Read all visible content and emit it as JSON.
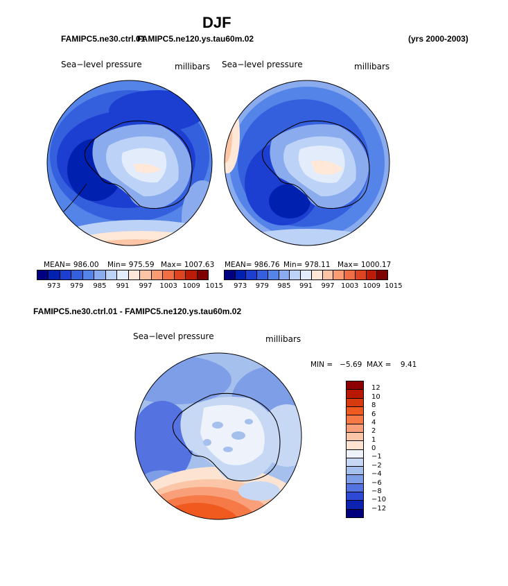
{
  "title": "DJF",
  "header": {
    "left_case_overlapped": "FAMIPC5.ne30.ctrl.01",
    "left_years_overlapped": "FAMIPC5.ne120.ys.tau60m.02",
    "right_years": "(yrs 2000-2003)"
  },
  "panels": {
    "variable": "Sea−level pressure",
    "units": "millibars",
    "left": {
      "mean": "MEAN= 986.00",
      "min": "Min= 975.59",
      "max": "Max= 1007.63"
    },
    "right": {
      "mean": "MEAN= 986.76",
      "min": "Min= 978.11",
      "max": "Max= 1000.17"
    },
    "colorbar_ticks": [
      "973",
      "979",
      "985",
      "991",
      "997",
      "1003",
      "1009",
      "1015"
    ],
    "colorbar_colors": [
      "#000080",
      "#0020b0",
      "#1c3fd2",
      "#3460de",
      "#5584e8",
      "#8aabee",
      "#bcd2f6",
      "#e3ecfb",
      "#ffe8d8",
      "#fcc6a6",
      "#f99c74",
      "#f06e44",
      "#de4420",
      "#bb1c08",
      "#7f0000"
    ]
  },
  "diff": {
    "label": "FAMIPC5.ne30.ctrl.01 - FAMIPC5.ne120.ys.tau60m.02",
    "variable": "Sea−level pressure",
    "units": "millibars",
    "min_max": "MIN =   −5.69  MAX =    9.41",
    "colorbar_ticks": [
      "12",
      "10",
      "8",
      "6",
      "4",
      "2",
      "1",
      "0",
      "−1",
      "−2",
      "−4",
      "−6",
      "−8",
      "−10",
      "−12"
    ],
    "colorbar_colors": [
      "#8b0000",
      "#b81800",
      "#d83a10",
      "#f05a1e",
      "#f57a48",
      "#f9a07a",
      "#fbc6a8",
      "#fde4d2",
      "#eef3fb",
      "#c6d8f4",
      "#a6c0ee",
      "#7e9ee8",
      "#5472e0",
      "#2e4ad4",
      "#0c22b0",
      "#00007e"
    ]
  },
  "colors": {
    "deep_low": "#1d3fc8",
    "low": "#3a62de",
    "mid": "#8fb0ee",
    "light": "#cfe0f8",
    "warm": "#fcc6a6",
    "hot": "#e5501e"
  }
}
